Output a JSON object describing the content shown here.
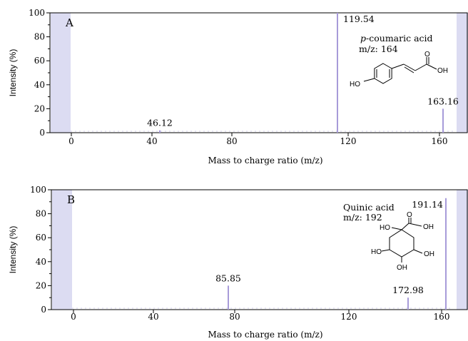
{
  "chart_data": [
    {
      "type": "bar",
      "panel_label": "A",
      "xlabel": "Mass to charge ratio (m/z)",
      "ylabel": "Intensity (%)",
      "xlim": [
        -6,
        167
      ],
      "ylim": [
        0,
        100
      ],
      "xticks": [
        0,
        40,
        80,
        120,
        160
      ],
      "yticks": [
        0,
        20,
        40,
        60,
        80,
        100
      ],
      "grid": false,
      "compound_name": "p-coumaric acid",
      "compound_name_prefix": "p",
      "compound_name_rest": "-coumaric acid",
      "compound_mz": "m/z: 164",
      "structure_labels": {
        "o1": "O",
        "oh1": "OH",
        "ho": "HO"
      },
      "peaks": [
        {
          "x": 46.12,
          "y": 2,
          "label": "46.12"
        },
        {
          "x": 119.54,
          "y": 100,
          "label": "119.54"
        },
        {
          "x": 163.16,
          "y": 20,
          "label": "163.16"
        }
      ],
      "accent_color": "#a79bd9",
      "band_color": "#dcdcf2"
    },
    {
      "type": "bar",
      "panel_label": "B",
      "xlabel": "Mass to charge ratio (m/z)",
      "ylabel": "Intensity (%)",
      "xlim": [
        -6,
        167
      ],
      "ylim": [
        0,
        100
      ],
      "xticks": [
        0,
        40,
        80,
        120,
        160
      ],
      "yticks": [
        0,
        20,
        40,
        60,
        80,
        100
      ],
      "grid": false,
      "compound_name": "Quinic acid",
      "compound_mz": "m/z: 192",
      "structure_labels": {
        "o": "O",
        "ho_top": "HO",
        "oh_top": "OH",
        "ho_left": "HO",
        "oh_right": "OH",
        "oh_bottom": "OH"
      },
      "peaks": [
        {
          "x": 85.85,
          "y": 20,
          "label": "85.85"
        },
        {
          "x": 172.98,
          "y": 10,
          "label": "172.98"
        },
        {
          "x": 191.14,
          "y": 93,
          "label": "191.14"
        }
      ],
      "accent_color": "#a79bd9",
      "band_color": "#dcdcf2"
    }
  ]
}
